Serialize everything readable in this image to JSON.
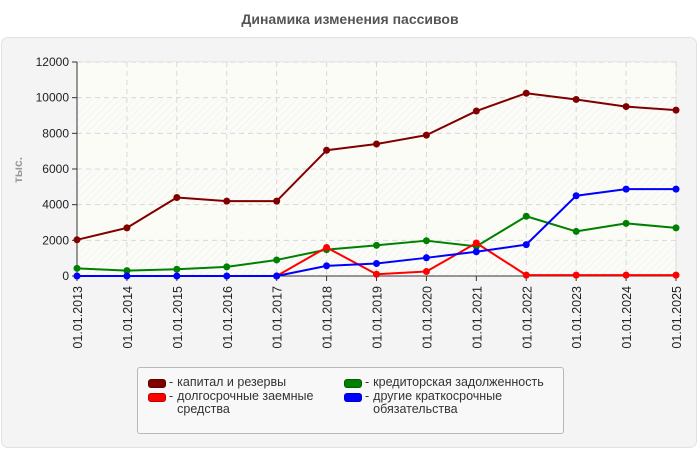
{
  "title": "Динамика изменения пассивов",
  "chart_data": {
    "type": "line",
    "title": "Динамика изменения пассивов",
    "xlabel": "",
    "ylabel": "тыс.",
    "ylim": [
      0,
      12000
    ],
    "yticks": [
      0,
      2000,
      4000,
      6000,
      8000,
      10000,
      12000
    ],
    "grid": true,
    "legend_position": "bottom",
    "categories": [
      "01.01.2013",
      "01.01.2014",
      "01.01.2015",
      "01.01.2016",
      "01.01.2017",
      "01.01.2018",
      "01.01.2019",
      "01.01.2020",
      "01.01.2021",
      "01.01.2022",
      "01.01.2023",
      "01.01.2024",
      "01.01.2025"
    ],
    "series": [
      {
        "name": "капитал и резервы",
        "color": "#800000",
        "values": [
          2030,
          2700,
          4400,
          4200,
          4200,
          7050,
          7400,
          7900,
          9250,
          10250,
          9900,
          9500,
          9300
        ]
      },
      {
        "name": "долгосрочные заемные средства",
        "color": "#ff0000",
        "values": [
          null,
          null,
          null,
          null,
          0,
          1600,
          100,
          250,
          1850,
          50,
          50,
          50,
          50
        ]
      },
      {
        "name": "кредиторская задолженность",
        "color": "#008000",
        "values": [
          430,
          300,
          380,
          510,
          900,
          1480,
          1720,
          1980,
          1660,
          3350,
          2500,
          2950,
          2700
        ]
      },
      {
        "name": "другие краткосрочные обязательства",
        "color": "#0000ff",
        "values": [
          0,
          0,
          0,
          0,
          0,
          570,
          700,
          1020,
          1360,
          1760,
          4500,
          4870,
          4870
        ]
      }
    ]
  },
  "legend": [
    {
      "label": "капитал и резервы",
      "color": "#800000"
    },
    {
      "label": "кредиторская задолженность",
      "color": "#008000"
    },
    {
      "label": "долгосрочные заемные средства",
      "color": "#ff0000"
    },
    {
      "label": "другие краткосрочные обязательства",
      "color": "#0000ff"
    }
  ],
  "legend_dash": "-"
}
